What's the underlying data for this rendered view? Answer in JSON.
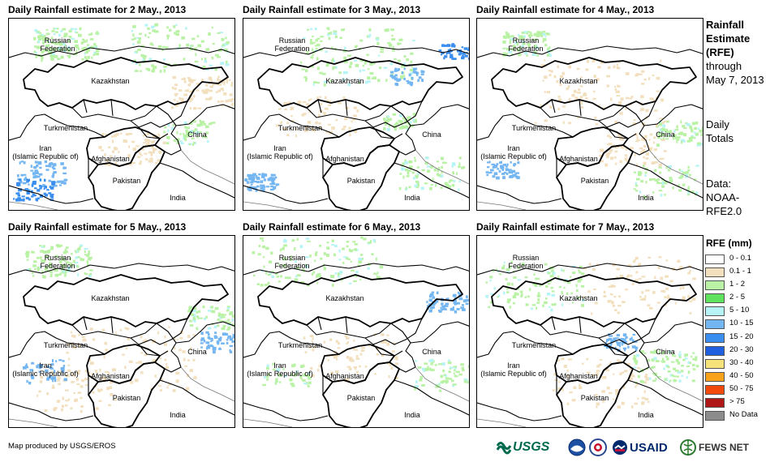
{
  "panels": [
    {
      "title": "Daily Rainfall estimate for 2 May., 2013"
    },
    {
      "title": "Daily Rainfall estimate for 3 May., 2013"
    },
    {
      "title": "Daily Rainfall estimate for 4 May., 2013"
    },
    {
      "title": "Daily Rainfall estimate for 5 May., 2013"
    },
    {
      "title": "Daily Rainfall estimate for 6 May., 2013"
    },
    {
      "title": "Daily Rainfall estimate for 7 May., 2013"
    }
  ],
  "map_labels": {
    "russia": "Russian\nFederation",
    "kazakhstan": "Kazakhstan",
    "turkmenistan": "Turkmenistan",
    "iran": "Iran\n(Islamic Republic of)",
    "afghanistan": "Afghanistan",
    "pakistan": "Pakistan",
    "china": "China",
    "india": "India"
  },
  "sidebar": {
    "title_line1": "Rainfall",
    "title_line2": "Estimate",
    "title_line3": "(RFE)",
    "through": "through",
    "date": "May 7, 2013",
    "daily1": "Daily",
    "daily2": "Totals",
    "data_label": "Data:",
    "data_src1": "NOAA-",
    "data_src2": "RFE2.0"
  },
  "legend": {
    "title": "RFE (mm)",
    "items": [
      {
        "label": "0 - 0.1",
        "color": "#ffffff"
      },
      {
        "label": "0.1 - 1",
        "color": "#f2dfbd"
      },
      {
        "label": "1 - 2",
        "color": "#b9f2a5"
      },
      {
        "label": "2 - 5",
        "color": "#5fe35f"
      },
      {
        "label": "5 - 10",
        "color": "#b7f4f6"
      },
      {
        "label": "10 - 15",
        "color": "#74b6f2"
      },
      {
        "label": "15 - 20",
        "color": "#3a8ef0"
      },
      {
        "label": "20 - 30",
        "color": "#1f5fe0"
      },
      {
        "label": "30 - 40",
        "color": "#f6e27a"
      },
      {
        "label": "40 - 50",
        "color": "#f8a21b"
      },
      {
        "label": "50 - 75",
        "color": "#f24a0c"
      },
      {
        "label": "> 75",
        "color": "#b01818"
      },
      {
        "label": "No Data",
        "color": "#8c8c8c"
      }
    ]
  },
  "credit": "Map produced by USGS/EROS",
  "logos": {
    "usgs": "USGS",
    "usaid": "USAID",
    "fewsnet": "FEWS NET"
  }
}
